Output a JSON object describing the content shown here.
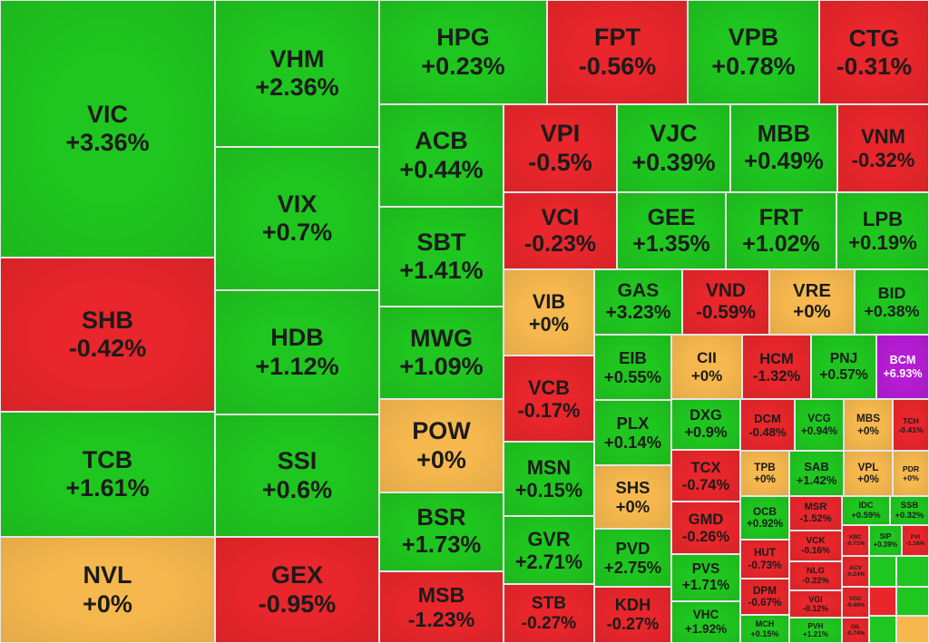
{
  "colors": {
    "up": "#1fc61f",
    "down": "#e8262b",
    "flat": "#f6b84e",
    "ceiling": "#b51cd3"
  },
  "tiles": [
    {
      "ticker": "VIC",
      "change": "+3.36%"
    },
    {
      "ticker": "SHB",
      "change": "-0.42%"
    },
    {
      "ticker": "TCB",
      "change": "+1.61%"
    },
    {
      "ticker": "NVL",
      "change": "+0%"
    },
    {
      "ticker": "VHM",
      "change": "+2.36%"
    },
    {
      "ticker": "VIX",
      "change": "+0.7%"
    },
    {
      "ticker": "HDB",
      "change": "+1.12%"
    },
    {
      "ticker": "SSI",
      "change": "+0.6%"
    },
    {
      "ticker": "GEX",
      "change": "-0.95%"
    },
    {
      "ticker": "HPG",
      "change": "+0.23%"
    },
    {
      "ticker": "FPT",
      "change": "-0.56%"
    },
    {
      "ticker": "VPB",
      "change": "+0.78%"
    },
    {
      "ticker": "CTG",
      "change": "-0.31%"
    },
    {
      "ticker": "ACB",
      "change": "+0.44%"
    },
    {
      "ticker": "SBT",
      "change": "+1.41%"
    },
    {
      "ticker": "MWG",
      "change": "+1.09%"
    },
    {
      "ticker": "POW",
      "change": "+0%"
    },
    {
      "ticker": "BSR",
      "change": "+1.73%"
    },
    {
      "ticker": "MSB",
      "change": "-1.23%"
    },
    {
      "ticker": "VPI",
      "change": "-0.5%"
    },
    {
      "ticker": "VJC",
      "change": "+0.39%"
    },
    {
      "ticker": "MBB",
      "change": "+0.49%"
    },
    {
      "ticker": "VNM",
      "change": "-0.32%"
    },
    {
      "ticker": "VCI",
      "change": "-0.23%"
    },
    {
      "ticker": "GEE",
      "change": "+1.35%"
    },
    {
      "ticker": "FRT",
      "change": "+1.02%"
    },
    {
      "ticker": "LPB",
      "change": "+0.19%"
    },
    {
      "ticker": "VIB",
      "change": "+0%"
    },
    {
      "ticker": "VCB",
      "change": "-0.17%"
    },
    {
      "ticker": "MSN",
      "change": "+0.15%"
    },
    {
      "ticker": "GVR",
      "change": "+2.71%"
    },
    {
      "ticker": "STB",
      "change": "-0.27%"
    },
    {
      "ticker": "GAS",
      "change": "+3.23%"
    },
    {
      "ticker": "VND",
      "change": "-0.59%"
    },
    {
      "ticker": "VRE",
      "change": "+0%"
    },
    {
      "ticker": "BID",
      "change": "+0.38%"
    },
    {
      "ticker": "EIB",
      "change": "+0.55%"
    },
    {
      "ticker": "PLX",
      "change": "+0.14%"
    },
    {
      "ticker": "SHS",
      "change": "+0%"
    },
    {
      "ticker": "PVD",
      "change": "+2.75%"
    },
    {
      "ticker": "KDH",
      "change": "-0.27%"
    },
    {
      "ticker": "CII",
      "change": "+0%"
    },
    {
      "ticker": "HCM",
      "change": "-1.32%"
    },
    {
      "ticker": "PNJ",
      "change": "+0.57%"
    },
    {
      "ticker": "BCM",
      "change": "+6.93%"
    },
    {
      "ticker": "DXG",
      "change": "+0.9%"
    },
    {
      "ticker": "TCX",
      "change": "-0.74%"
    },
    {
      "ticker": "GMD",
      "change": "-0.26%"
    },
    {
      "ticker": "PVS",
      "change": "+1.71%"
    },
    {
      "ticker": "VHC",
      "change": "+1.92%"
    },
    {
      "ticker": "DCM",
      "change": "-0.48%"
    },
    {
      "ticker": "VCG",
      "change": "+0.94%"
    },
    {
      "ticker": "MBS",
      "change": "+0%"
    },
    {
      "ticker": "TCH",
      "change": "-0.41%"
    },
    {
      "ticker": "TPB",
      "change": "+0%"
    },
    {
      "ticker": "SAB",
      "change": "+1.42%"
    },
    {
      "ticker": "VPL",
      "change": "+0%"
    },
    {
      "ticker": "PDR",
      "change": "+0%"
    },
    {
      "ticker": "OCB",
      "change": "+0.92%"
    },
    {
      "ticker": "HUT",
      "change": "-0.73%"
    },
    {
      "ticker": "DPM",
      "change": "-0.67%"
    },
    {
      "ticker": "MCH",
      "change": "+0.15%"
    },
    {
      "ticker": "MSR",
      "change": "-1.52%"
    },
    {
      "ticker": "VCK",
      "change": "-0.16%"
    },
    {
      "ticker": "NLG",
      "change": "-0.22%"
    },
    {
      "ticker": "VGI",
      "change": "-0.12%"
    },
    {
      "ticker": "PVH",
      "change": "+1.21%"
    },
    {
      "ticker": "IDC",
      "change": "+0.59%"
    },
    {
      "ticker": "SSB",
      "change": "+0.32%"
    },
    {
      "ticker": "KBC",
      "change": "-0.71%"
    },
    {
      "ticker": "SIP",
      "change": "+0.39%"
    },
    {
      "ticker": "PVI",
      "change": "-1.16%"
    },
    {
      "ticker": "ACV",
      "change": "-0.24%"
    },
    {
      "ticker": "VGC",
      "change": "-0.49%"
    },
    {
      "ticker": "OIL",
      "change": "-0.74%"
    }
  ]
}
